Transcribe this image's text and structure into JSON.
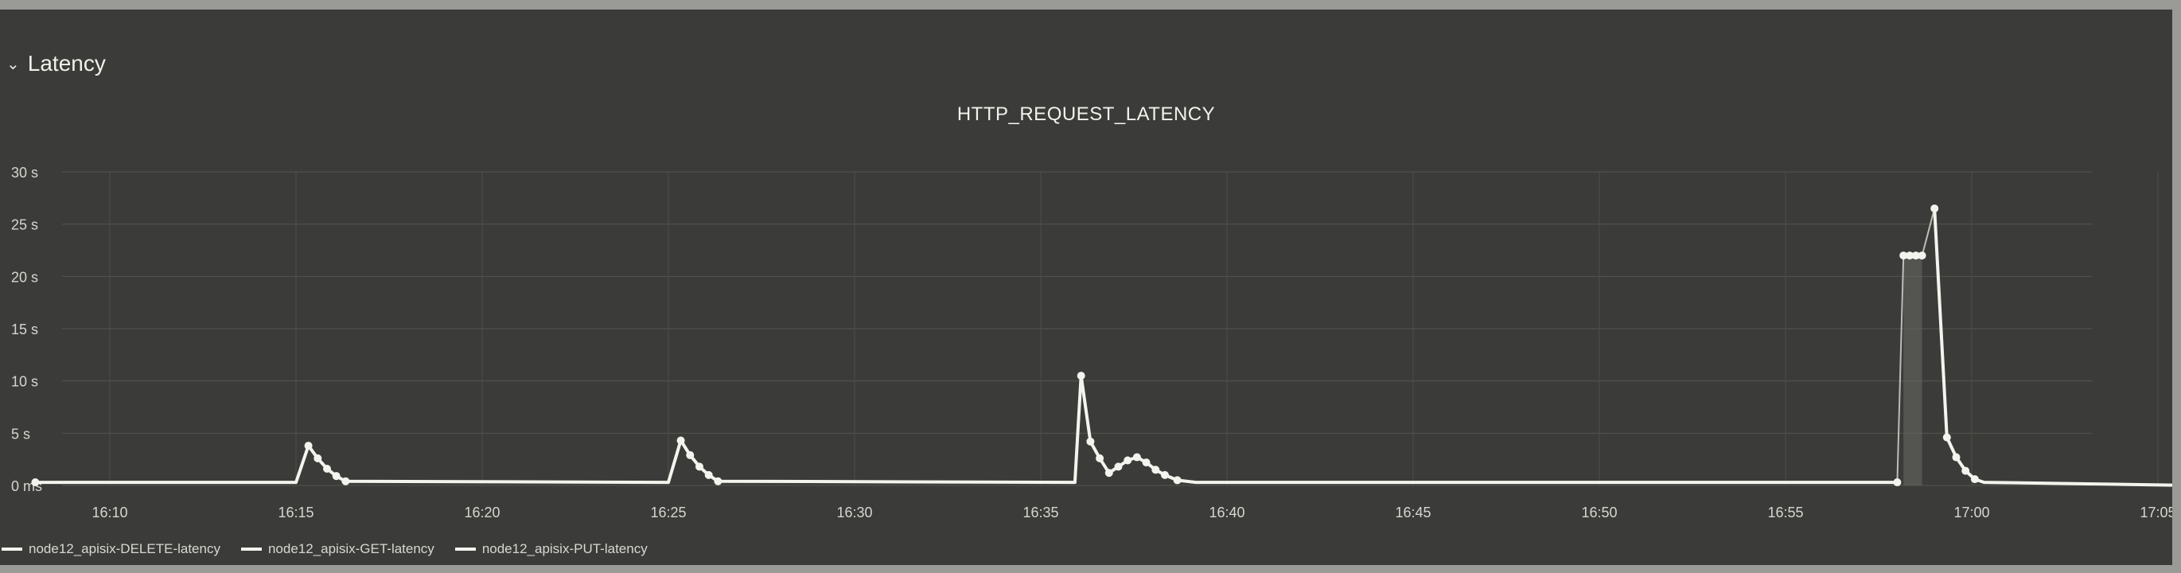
{
  "panel": {
    "title": "Latency",
    "chevron_icon": "chevron-down-icon"
  },
  "chart_data": {
    "type": "line",
    "title": "HTTP_REQUEST_LATENCY",
    "xlabel": "",
    "ylabel": "",
    "x_ticks": [
      "16:10",
      "16:15",
      "16:20",
      "16:25",
      "16:30",
      "16:35",
      "16:40",
      "16:45",
      "16:50",
      "16:55",
      "17:00",
      "17:05"
    ],
    "y_ticks": [
      "0 ms",
      "5 s",
      "10 s",
      "15 s",
      "20 s",
      "25 s",
      "30 s"
    ],
    "ylim": [
      0,
      30
    ],
    "y_unit": "s",
    "grid": true,
    "legend_position": "bottom-left",
    "line_color": "#f4f4ee",
    "series": [
      {
        "name": "node12_apisix-DELETE-latency",
        "points": [
          [
            "16:08",
            0.3
          ],
          [
            "16:15",
            0.3
          ],
          [
            "16:15:20",
            3.8
          ],
          [
            "16:15:35",
            2.6
          ],
          [
            "16:15:50",
            1.6
          ],
          [
            "16:16:05",
            0.9
          ],
          [
            "16:16:20",
            0.4
          ],
          [
            "16:25",
            0.3
          ],
          [
            "16:25:20",
            4.3
          ],
          [
            "16:25:35",
            2.9
          ],
          [
            "16:25:50",
            1.8
          ],
          [
            "16:26:05",
            1.0
          ],
          [
            "16:26:20",
            0.4
          ],
          [
            "16:35:55",
            0.3
          ],
          [
            "16:36:05",
            10.5
          ],
          [
            "16:36:20",
            4.2
          ],
          [
            "16:36:35",
            2.6
          ],
          [
            "16:36:50",
            1.2
          ],
          [
            "16:37:05",
            1.8
          ],
          [
            "16:37:20",
            2.4
          ],
          [
            "16:37:35",
            2.7
          ],
          [
            "16:37:50",
            2.2
          ],
          [
            "16:38:05",
            1.5
          ],
          [
            "16:38:20",
            1.0
          ],
          [
            "16:38:40",
            0.5
          ],
          [
            "16:39:10",
            0.3
          ],
          [
            "16:58",
            0.3
          ]
        ]
      },
      {
        "name": "node12_apisix-GET-latency",
        "points": [
          [
            "16:58:10",
            22.0
          ],
          [
            "16:58:20",
            22.0
          ],
          [
            "16:58:30",
            22.0
          ],
          [
            "16:58:40",
            22.0
          ]
        ]
      },
      {
        "name": "node12_apisix-PUT-latency",
        "points": [
          [
            "16:59:00",
            26.5
          ],
          [
            "16:59:20",
            4.6
          ],
          [
            "16:59:35",
            2.7
          ],
          [
            "16:59:50",
            1.4
          ],
          [
            "17:00:05",
            0.6
          ],
          [
            "17:00:20",
            0.3
          ],
          [
            "17:06",
            0.0
          ]
        ]
      }
    ]
  }
}
